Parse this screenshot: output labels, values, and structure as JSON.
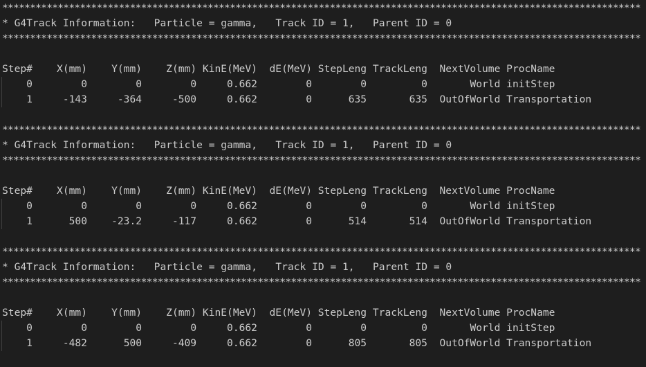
{
  "terminal": {
    "separator": "*******************************************************************************************************************",
    "header_columns": [
      "Step#",
      "X(mm)",
      "Y(mm)",
      "Z(mm)",
      "KinE(MeV)",
      "dE(MeV)",
      "StepLeng",
      "TrackLeng",
      "NextVolume",
      "ProcName"
    ],
    "tracks": [
      {
        "info": "* G4Track Information:   Particle = gamma,   Track ID = 1,   Parent ID = 0",
        "rows": [
          [
            "0",
            "0",
            "0",
            "0",
            "0.662",
            "0",
            "0",
            "0",
            "World",
            "initStep"
          ],
          [
            "1",
            "-143",
            "-364",
            "-500",
            "0.662",
            "0",
            "635",
            "635",
            "OutOfWorld",
            "Transportation"
          ]
        ]
      },
      {
        "info": "* G4Track Information:   Particle = gamma,   Track ID = 1,   Parent ID = 0",
        "rows": [
          [
            "0",
            "0",
            "0",
            "0",
            "0.662",
            "0",
            "0",
            "0",
            "World",
            "initStep"
          ],
          [
            "1",
            "500",
            "-23.2",
            "-117",
            "0.662",
            "0",
            "514",
            "514",
            "OutOfWorld",
            "Transportation"
          ]
        ]
      },
      {
        "info": "* G4Track Information:   Particle = gamma,   Track ID = 1,   Parent ID = 0",
        "rows": [
          [
            "0",
            "0",
            "0",
            "0",
            "0.662",
            "0",
            "0",
            "0",
            "World",
            "initStep"
          ],
          [
            "1",
            "-482",
            "500",
            "-409",
            "0.662",
            "0",
            "805",
            "805",
            "OutOfWorld",
            "Transportation"
          ]
        ]
      }
    ]
  }
}
